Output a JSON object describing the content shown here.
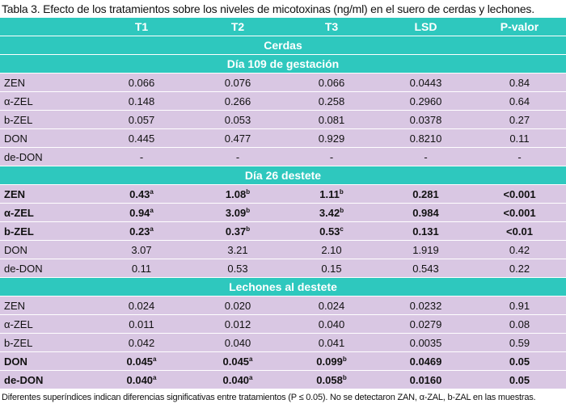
{
  "caption": "Tabla 3. Efecto de los tratamientos sobre los niveles de micotoxinas (ng/ml) en el suero de cerdas y lechones.",
  "columns": [
    "",
    "T1",
    "T2",
    "T3",
    "LSD",
    "P-valor"
  ],
  "title_row": "Cerdas",
  "sections": [
    {
      "title": "Día 109 de gestación",
      "rows": [
        {
          "bold": false,
          "name": "ZEN",
          "t1": "0.066",
          "t1s": "",
          "t2": "0.076",
          "t2s": "",
          "t3": "0.066",
          "t3s": "",
          "lsd": "0.0443",
          "p": "0.84"
        },
        {
          "bold": false,
          "name": "α-ZEL",
          "t1": "0.148",
          "t1s": "",
          "t2": "0.266",
          "t2s": "",
          "t3": "0.258",
          "t3s": "",
          "lsd": "0.2960",
          "p": "0.64"
        },
        {
          "bold": false,
          "name": "b-ZEL",
          "t1": "0.057",
          "t1s": "",
          "t2": "0.053",
          "t2s": "",
          "t3": "0.081",
          "t3s": "",
          "lsd": "0.0378",
          "p": "0.27"
        },
        {
          "bold": false,
          "name": "DON",
          "t1": "0.445",
          "t1s": "",
          "t2": "0.477",
          "t2s": "",
          "t3": "0.929",
          "t3s": "",
          "lsd": "0.8210",
          "p": "0.11"
        },
        {
          "bold": false,
          "name": "de-DON",
          "t1": "-",
          "t1s": "",
          "t2": "-",
          "t2s": "",
          "t3": "-",
          "t3s": "",
          "lsd": "-",
          "p": "-"
        }
      ]
    },
    {
      "title": "Día 26 destete",
      "rows": [
        {
          "bold": true,
          "name": "ZEN",
          "t1": "0.43",
          "t1s": "a",
          "t2": "1.08",
          "t2s": "b",
          "t3": "1.11",
          "t3s": "b",
          "lsd": "0.281",
          "p": "<0.001"
        },
        {
          "bold": true,
          "name": "α-ZEL",
          "t1": "0.94",
          "t1s": "a",
          "t2": "3.09",
          "t2s": "b",
          "t3": "3.42",
          "t3s": "b",
          "lsd": "0.984",
          "p": "<0.001"
        },
        {
          "bold": true,
          "name": "b-ZEL",
          "t1": "0.23",
          "t1s": "a",
          "t2": "0.37",
          "t2s": "b",
          "t3": "0.53",
          "t3s": "c",
          "lsd": "0.131",
          "p": "<0.01"
        },
        {
          "bold": false,
          "name": "DON",
          "t1": "3.07",
          "t1s": "",
          "t2": "3.21",
          "t2s": "",
          "t3": "2.10",
          "t3s": "",
          "lsd": "1.919",
          "p": "0.42"
        },
        {
          "bold": false,
          "name": "de-DON",
          "t1": "0.11",
          "t1s": "",
          "t2": "0.53",
          "t2s": "",
          "t3": "0.15",
          "t3s": "",
          "lsd": "0.543",
          "p": "0.22"
        }
      ]
    },
    {
      "title": "Lechones al destete",
      "rows": [
        {
          "bold": false,
          "name": "ZEN",
          "t1": "0.024",
          "t1s": "",
          "t2": "0.020",
          "t2s": "",
          "t3": "0.024",
          "t3s": "",
          "lsd": "0.0232",
          "p": "0.91"
        },
        {
          "bold": false,
          "name": "α-ZEL",
          "t1": "0.011",
          "t1s": "",
          "t2": "0.012",
          "t2s": "",
          "t3": "0.040",
          "t3s": "",
          "lsd": "0.0279",
          "p": "0.08"
        },
        {
          "bold": false,
          "name": "b-ZEL",
          "t1": "0.042",
          "t1s": "",
          "t2": "0.040",
          "t2s": "",
          "t3": "0.041",
          "t3s": "",
          "lsd": "0.0035",
          "p": "0.59"
        },
        {
          "bold": true,
          "name": "DON",
          "t1": "0.045",
          "t1s": "a",
          "t2": "0.045",
          "t2s": "a",
          "t3": "0.099",
          "t3s": "b",
          "lsd": "0.0469",
          "p": "0.05"
        },
        {
          "bold": true,
          "name": "de-DON",
          "t1": "0.040",
          "t1s": "a",
          "t2": "0.040",
          "t2s": "a",
          "t3": "0.058",
          "t3s": "b",
          "lsd": "0.0160",
          "p": "0.05"
        }
      ]
    }
  ],
  "footnote": "Diferentes superíndices indican diferencias significativas entre tratamientos (P ≤ 0.05). No se detectaron ZAN, α-ZAL, b-ZAL en las muestras.",
  "colors": {
    "header": "#2ec8be",
    "row": "#d9c7e3"
  }
}
